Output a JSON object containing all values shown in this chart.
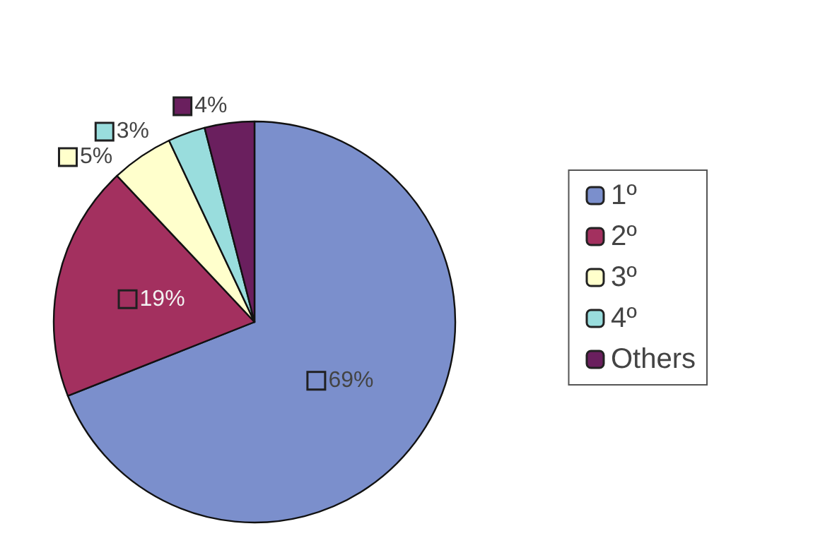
{
  "chart_data": {
    "type": "pie",
    "categories": [
      "1º",
      "2º",
      "3º",
      "4º",
      "Others"
    ],
    "values": [
      69,
      19,
      5,
      3,
      4
    ],
    "colors": [
      "#7b8fcc",
      "#a3305f",
      "#ffffcc",
      "#99dddd",
      "#6a1f5e"
    ],
    "value_labels": [
      "69%",
      "19%",
      "5%",
      "3%",
      "4%"
    ],
    "legend": "right"
  }
}
